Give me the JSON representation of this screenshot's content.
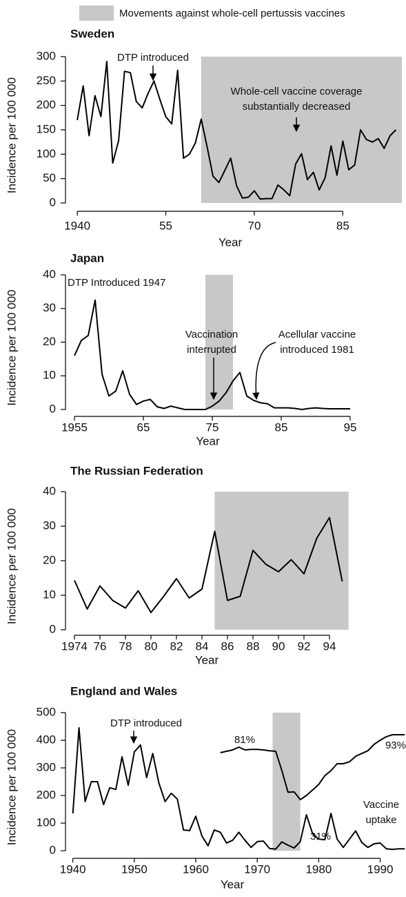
{
  "legend": {
    "label": "Movements against whole-cell pertussis vaccines",
    "color": "#c8c8c8"
  },
  "chart_data": [
    {
      "type": "line",
      "title": "Sweden",
      "y_label": "Incidence per 100 000",
      "x_label": "Year",
      "x": [
        1940,
        1941,
        1942,
        1943,
        1944,
        1945,
        1946,
        1947,
        1948,
        1949,
        1950,
        1951,
        1952,
        1953,
        1954,
        1955,
        1956,
        1957,
        1958,
        1959,
        1960,
        1961,
        1962,
        1963,
        1964,
        1965,
        1966,
        1967,
        1968,
        1969,
        1970,
        1971,
        1972,
        1973,
        1974,
        1975,
        1976,
        1977,
        1978,
        1979,
        1980,
        1981,
        1982,
        1983,
        1984,
        1985,
        1986,
        1987,
        1988,
        1989,
        1990,
        1991,
        1992,
        1993,
        1994
      ],
      "series": [
        {
          "color": "#000000",
          "values": [
            170,
            240,
            138,
            220,
            177,
            290,
            82,
            128,
            270,
            267,
            208,
            195,
            225,
            250,
            212,
            177,
            162,
            272,
            92,
            100,
            123,
            172,
            115,
            55,
            42,
            67,
            92,
            35,
            10,
            12,
            25,
            8,
            9,
            9,
            37,
            27,
            15,
            80,
            101,
            48,
            63,
            27,
            52,
            117,
            57,
            127,
            68,
            78,
            150,
            130,
            125,
            132,
            112,
            138,
            150
          ]
        }
      ],
      "xlim": [
        1938,
        1995
      ],
      "xticks": [
        1940,
        {
          "value": 1955,
          "label": "55"
        },
        {
          "value": 1970,
          "label": "70"
        },
        {
          "value": 1985,
          "label": "85"
        }
      ],
      "ylim": [
        0,
        300
      ],
      "yticks": [
        0,
        50,
        100,
        150,
        200,
        250,
        300
      ],
      "shaded": [
        1961,
        1995
      ],
      "annotations": [
        {
          "text": [
            "DTP introduced"
          ]
        },
        {
          "text": [
            "Whole-cell vaccine coverage",
            "substantially decreased"
          ]
        }
      ]
    },
    {
      "type": "line",
      "title": "Japan",
      "y_label": "Incidence per 100 000",
      "x_label": "Year",
      "x": [
        1955,
        1956,
        1957,
        1958,
        1959,
        1960,
        1961,
        1962,
        1963,
        1964,
        1965,
        1966,
        1967,
        1968,
        1969,
        1970,
        1971,
        1972,
        1973,
        1974,
        1975,
        1976,
        1977,
        1978,
        1979,
        1980,
        1981,
        1982,
        1983,
        1984,
        1985,
        1986,
        1987,
        1988,
        1989,
        1990,
        1991,
        1992,
        1993,
        1994,
        1995
      ],
      "series": [
        {
          "color": "#000000",
          "values": [
            16,
            20.5,
            22,
            32.5,
            10.5,
            4,
            5.5,
            11.5,
            4.5,
            1.5,
            2.5,
            3,
            0.8,
            0.3,
            1,
            0.5,
            0,
            0,
            0,
            0,
            1,
            2.5,
            5,
            8.5,
            11,
            4,
            2.7,
            2,
            1.7,
            0.5,
            0.5,
            0.5,
            0.3,
            0,
            0.3,
            0.5,
            0.3,
            0.2,
            0.2,
            0.2,
            0.2
          ]
        }
      ],
      "xlim": [
        1953.7,
        1996
      ],
      "xticks": [
        1955,
        {
          "value": 1965,
          "label": "65"
        },
        {
          "value": 1975,
          "label": "75"
        },
        {
          "value": 1985,
          "label": "85"
        },
        {
          "value": 1995,
          "label": "95"
        }
      ],
      "ylim": [
        0,
        40
      ],
      "yticks": [
        0,
        10,
        20,
        30,
        40
      ],
      "shaded": [
        1974,
        1978
      ],
      "annotations": [
        {
          "text": [
            "DTP Introduced 1947"
          ]
        },
        {
          "text": [
            "Vaccination",
            "interrupted"
          ]
        },
        {
          "text": [
            "Acellular vaccine",
            "introduced 1981"
          ]
        }
      ]
    },
    {
      "type": "line",
      "title": "The Russian Federation",
      "y_label": "Incidence per 100 000",
      "x_label": "Year",
      "x": [
        1974,
        1975,
        1976,
        1977,
        1978,
        1979,
        1980,
        1981,
        1982,
        1983,
        1984,
        1985,
        1986,
        1987,
        1988,
        1989,
        1990,
        1991,
        1992,
        1993,
        1994,
        1995
      ],
      "series": [
        {
          "color": "#000000",
          "values": [
            14.3,
            6,
            12.7,
            8.5,
            6.3,
            11.3,
            5,
            9.7,
            14.8,
            9.2,
            11.8,
            28.5,
            8.5,
            9.7,
            23,
            19,
            16.8,
            20.3,
            16.2,
            26.5,
            32.5,
            14
          ]
        }
      ],
      "xlim": [
        1973.3,
        1996
      ],
      "xticks": [
        1974,
        {
          "value": 1976,
          "label": "76"
        },
        {
          "value": 1978,
          "label": "78"
        },
        {
          "value": 1980,
          "label": "80"
        },
        {
          "value": 1982,
          "label": "82"
        },
        {
          "value": 1984,
          "label": "84"
        },
        {
          "value": 1986,
          "label": "86"
        },
        {
          "value": 1988,
          "label": "88"
        },
        {
          "value": 1990,
          "label": "90"
        },
        {
          "value": 1992,
          "label": "92"
        },
        {
          "value": 1994,
          "label": "94"
        }
      ],
      "ylim": [
        0,
        40
      ],
      "yticks": [
        0,
        10,
        20,
        30,
        40
      ],
      "shaded": [
        1985,
        1995.5
      ],
      "annotations": []
    },
    {
      "type": "line",
      "title": "England and Wales",
      "y_label": "Incidence per 100 000",
      "x_label": "Year",
      "x": [
        1940,
        1941,
        1942,
        1943,
        1944,
        1945,
        1946,
        1947,
        1948,
        1949,
        1950,
        1951,
        1952,
        1953,
        1954,
        1955,
        1956,
        1957,
        1958,
        1959,
        1960,
        1961,
        1962,
        1963,
        1964,
        1965,
        1966,
        1967,
        1968,
        1969,
        1970,
        1971,
        1972,
        1973,
        1974,
        1975,
        1976,
        1977,
        1978,
        1979,
        1980,
        1981,
        1982,
        1983,
        1984,
        1985,
        1986,
        1987,
        1988,
        1989,
        1990,
        1991,
        1992,
        1993,
        1994
      ],
      "series": [
        {
          "color": "#000000",
          "values": [
            135,
            445,
            178,
            250,
            250,
            167,
            228,
            222,
            340,
            237,
            358,
            383,
            265,
            352,
            245,
            178,
            208,
            187,
            75,
            73,
            125,
            53,
            18,
            75,
            67,
            28,
            38,
            67,
            38,
            12,
            33,
            35,
            8,
            6,
            32,
            20,
            10,
            33,
            130,
            62,
            42,
            40,
            135,
            42,
            12,
            42,
            72,
            30,
            12,
            25,
            28,
            7,
            5,
            7,
            7
          ]
        },
        {
          "color": "#000000",
          "values": [
            null,
            null,
            null,
            null,
            null,
            null,
            null,
            null,
            null,
            null,
            null,
            null,
            null,
            null,
            null,
            null,
            null,
            null,
            null,
            null,
            null,
            null,
            null,
            null,
            355,
            360,
            365,
            375,
            365,
            367,
            367,
            365,
            362,
            360,
            290,
            212,
            213,
            185,
            200,
            220,
            240,
            272,
            290,
            315,
            315,
            322,
            342,
            352,
            362,
            385,
            400,
            413,
            420,
            420,
            420
          ]
        }
      ],
      "xlim": [
        1938.8,
        1994.2
      ],
      "xticks": [
        1940,
        1950,
        1960,
        1970,
        1980,
        1990
      ],
      "ylim": [
        0,
        500
      ],
      "yticks": [
        0,
        100,
        200,
        300,
        400,
        500
      ],
      "shaded": [
        1972.5,
        1977
      ],
      "annotations": [
        {
          "text": [
            "DTP introduced"
          ]
        },
        {
          "text": [
            "81%"
          ]
        },
        {
          "text": [
            "31%"
          ]
        },
        {
          "text": [
            "93%"
          ]
        },
        {
          "text": [
            "Vaccine",
            "uptake"
          ]
        }
      ]
    }
  ]
}
